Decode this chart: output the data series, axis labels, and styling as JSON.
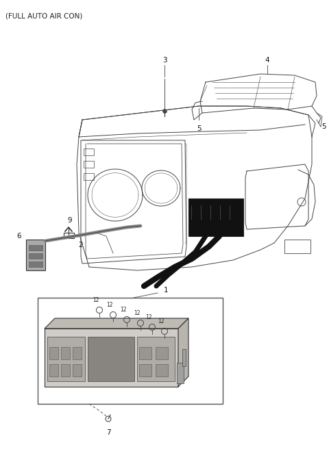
{
  "title": "(FULL AUTO AIR CON)",
  "bg": "#ffffff",
  "fig_w": 4.8,
  "fig_h": 6.56,
  "dpi": 100,
  "lc": "#444444",
  "lw": 0.7,
  "label_fs": 7.5
}
